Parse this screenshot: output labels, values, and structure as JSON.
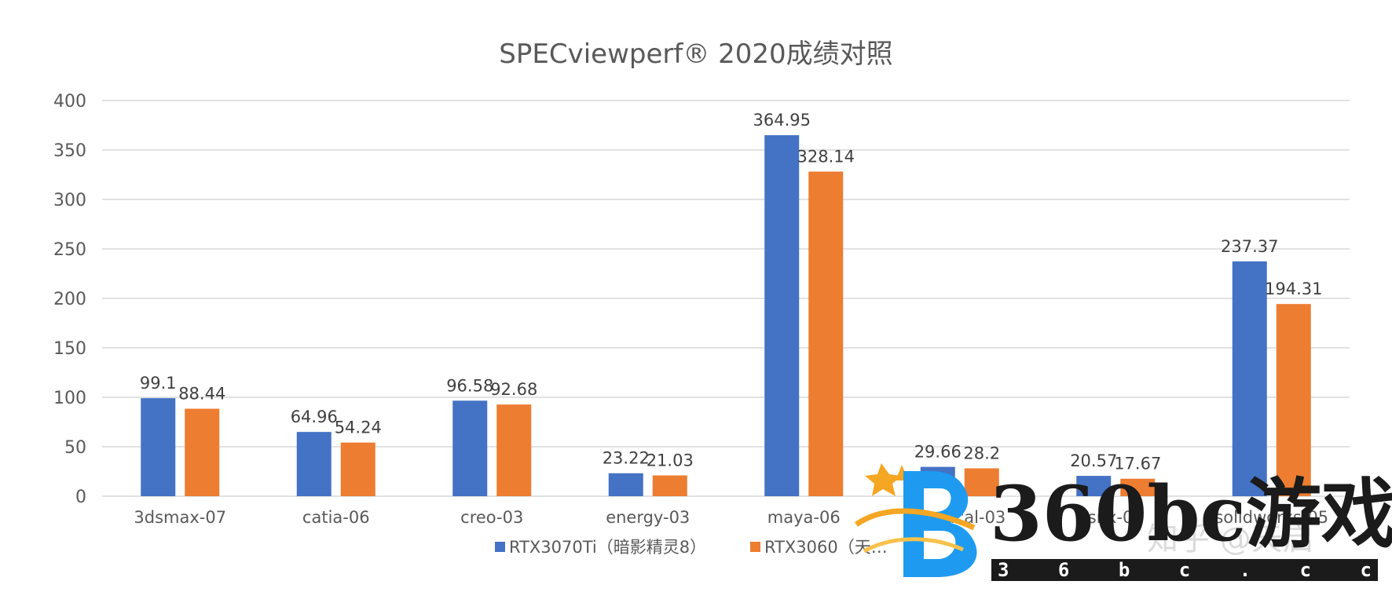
{
  "chart_data": {
    "type": "bar",
    "title": "SPECviewperf® 2020成绩对照",
    "categories": [
      "3dsmax-07",
      "catia-06",
      "creo-03",
      "energy-03",
      "maya-06",
      "medical-03",
      "snx-04",
      "solidworks-05"
    ],
    "series": [
      {
        "name": "RTX3070Ti（暗影精灵8）",
        "color": "#4472c4",
        "values": [
          99.1,
          64.96,
          96.58,
          23.22,
          364.95,
          29.66,
          20.57,
          237.37
        ]
      },
      {
        "name": "RTX3060（天…",
        "color": "#ed7d31",
        "values": [
          88.44,
          54.24,
          92.68,
          21.03,
          328.14,
          28.2,
          17.67,
          194.31
        ]
      }
    ],
    "ylim": [
      0,
      400
    ],
    "yticks": [
      0,
      50,
      100,
      150,
      200,
      250,
      300,
      350,
      400
    ],
    "grid": true,
    "legend_position": "bottom",
    "data_labels": true
  },
  "watermark": {
    "brand_text": "360bc游戏",
    "domain_text": "3 6 b c . c c",
    "faint_text": "知乎 @天启",
    "logo_icon": "b-logo-with-stars",
    "logo_colors": [
      "#1e9bf0",
      "#f5a623"
    ]
  }
}
